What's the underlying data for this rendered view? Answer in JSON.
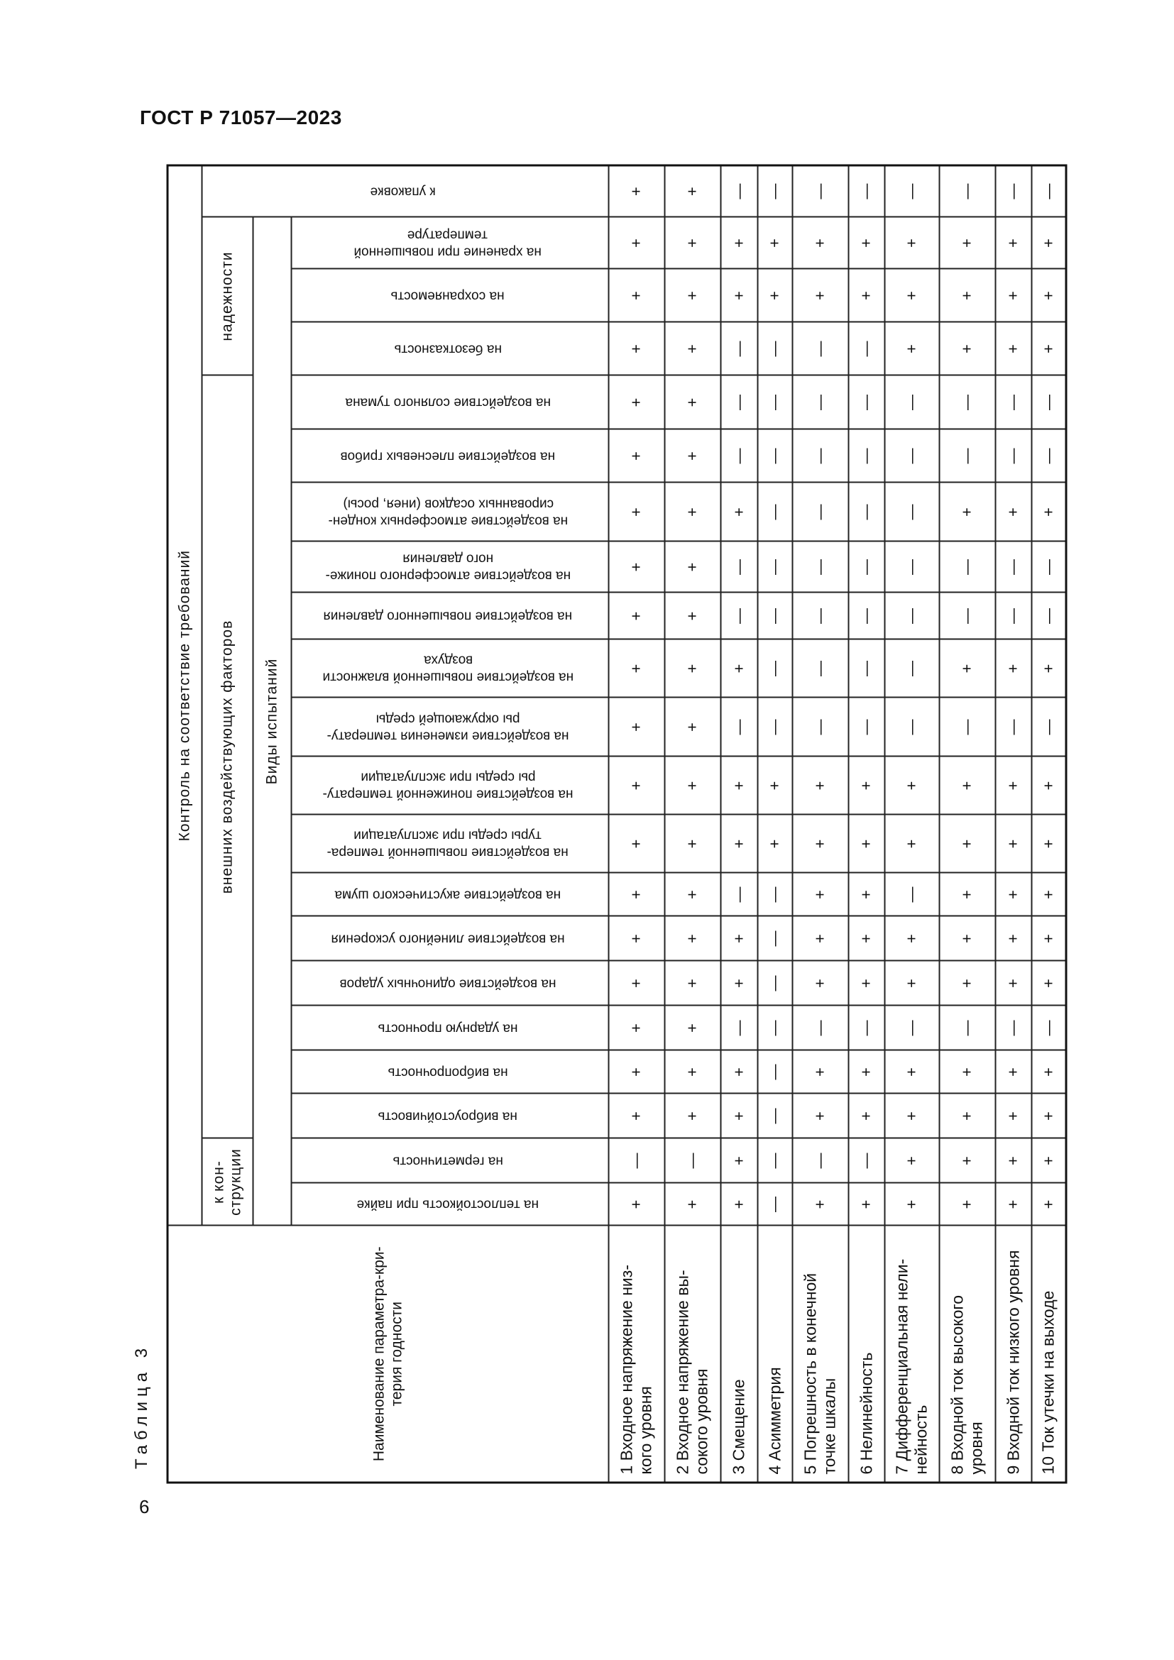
{
  "document": {
    "title": "ГОСТ Р 71057—2023",
    "table_caption": "Таблица 3",
    "page_number": "6"
  },
  "table": {
    "param_header": "Наименование параметра-кри-\nтерия годности",
    "top_header": "Контроль на соответствие требований",
    "groups": [
      {
        "label": "к кон-\nструкции",
        "span": 2
      },
      {
        "label": "внешних воздействующих факторов",
        "span": 15
      },
      {
        "label": "надежности",
        "span": 3
      }
    ],
    "tests_header": "Виды испытаний",
    "tests": [
      {
        "name": "на теплостойкость при пайке",
        "values": [
          "+",
          "+",
          "+",
          "—",
          "+",
          "+",
          "+",
          "+",
          "+",
          "+"
        ]
      },
      {
        "name": "на герметичность",
        "values": [
          "—",
          "—",
          "+",
          "—",
          "—",
          "—",
          "+",
          "+",
          "+",
          "+"
        ]
      },
      {
        "name": "на виброустойчивость",
        "values": [
          "+",
          "+",
          "+",
          "—",
          "+",
          "+",
          "+",
          "+",
          "+",
          "+"
        ]
      },
      {
        "name": "на вибропрочность",
        "values": [
          "+",
          "+",
          "+",
          "—",
          "+",
          "+",
          "+",
          "+",
          "+",
          "+"
        ]
      },
      {
        "name": "на ударную прочность",
        "values": [
          "+",
          "+",
          "—",
          "—",
          "—",
          "—",
          "—",
          "—",
          "—",
          "—"
        ]
      },
      {
        "name": "на воздействие одиночных ударов",
        "values": [
          "+",
          "+",
          "+",
          "—",
          "+",
          "+",
          "+",
          "+",
          "+",
          "+"
        ]
      },
      {
        "name": "на воздействие линейного ускорения",
        "values": [
          "+",
          "+",
          "+",
          "—",
          "+",
          "+",
          "+",
          "+",
          "+",
          "+"
        ]
      },
      {
        "name": "на воздействие акустического шума",
        "values": [
          "+",
          "+",
          "—",
          "—",
          "+",
          "+",
          "—",
          "+",
          "+",
          "+"
        ]
      },
      {
        "name": "на воздействие повышенной темпера-\nтуры среды при эксплуатации",
        "values": [
          "+",
          "+",
          "+",
          "+",
          "+",
          "+",
          "+",
          "+",
          "+",
          "+"
        ]
      },
      {
        "name": "на воздействие пониженной температу-\nры среды при эксплуатации",
        "values": [
          "+",
          "+",
          "+",
          "+",
          "+",
          "+",
          "+",
          "+",
          "+",
          "+"
        ]
      },
      {
        "name": "на воздействие изменения температу-\nры окружающей среды",
        "values": [
          "+",
          "+",
          "—",
          "—",
          "—",
          "—",
          "—",
          "—",
          "—",
          "—"
        ]
      },
      {
        "name": "на воздействие повышенной влажности\nвоздуха",
        "values": [
          "+",
          "+",
          "+",
          "—",
          "—",
          "—",
          "—",
          "+",
          "+",
          "+"
        ]
      },
      {
        "name": "на воздействие повышенного давления",
        "values": [
          "+",
          "+",
          "—",
          "—",
          "—",
          "—",
          "—",
          "—",
          "—",
          "—"
        ]
      },
      {
        "name": "на воздействие атмосферного пониже-\nного давления",
        "values": [
          "+",
          "+",
          "—",
          "—",
          "—",
          "—",
          "—",
          "—",
          "—",
          "—"
        ]
      },
      {
        "name": "на воздействие атмосферных конден-\nсированных осадков (инея, росы)",
        "values": [
          "+",
          "+",
          "+",
          "—",
          "—",
          "—",
          "—",
          "+",
          "+",
          "+"
        ]
      },
      {
        "name": "на воздействие плесневых грибов",
        "values": [
          "+",
          "+",
          "—",
          "—",
          "—",
          "—",
          "—",
          "—",
          "—",
          "—"
        ]
      },
      {
        "name": "на воздействие соляного тумана",
        "values": [
          "+",
          "+",
          "—",
          "—",
          "—",
          "—",
          "—",
          "—",
          "—",
          "—"
        ]
      },
      {
        "name": "на безотказность",
        "values": [
          "+",
          "+",
          "—",
          "—",
          "—",
          "—",
          "+",
          "+",
          "+",
          "+"
        ]
      },
      {
        "name": "на сохраняемость",
        "values": [
          "+",
          "+",
          "+",
          "+",
          "+",
          "+",
          "+",
          "+",
          "+",
          "+"
        ]
      },
      {
        "name": "на хранение при повышенной\nтемпературе",
        "values": [
          "+",
          "+",
          "+",
          "+",
          "+",
          "+",
          "+",
          "+",
          "+",
          "+"
        ]
      }
    ],
    "packaging": {
      "name": "к упаковке",
      "values": [
        "+",
        "+",
        "—",
        "—",
        "—",
        "—",
        "—",
        "—",
        "—",
        "—"
      ]
    },
    "params": [
      "1 Входное напряжение низ-\nкого уровня",
      "2 Входное напряжение вы-\nсокого уровня",
      "3 Смещение",
      "4 Асимметрия",
      "5 Погрешность в конечной\nточке шкалы",
      "6 Нелинейность",
      "7 Дифференциальная нели-\nнейность",
      "8 Входной ток высокого\nуровня",
      "9 Входной ток низкого уровня",
      "10 Ток утечки на выходе"
    ]
  }
}
